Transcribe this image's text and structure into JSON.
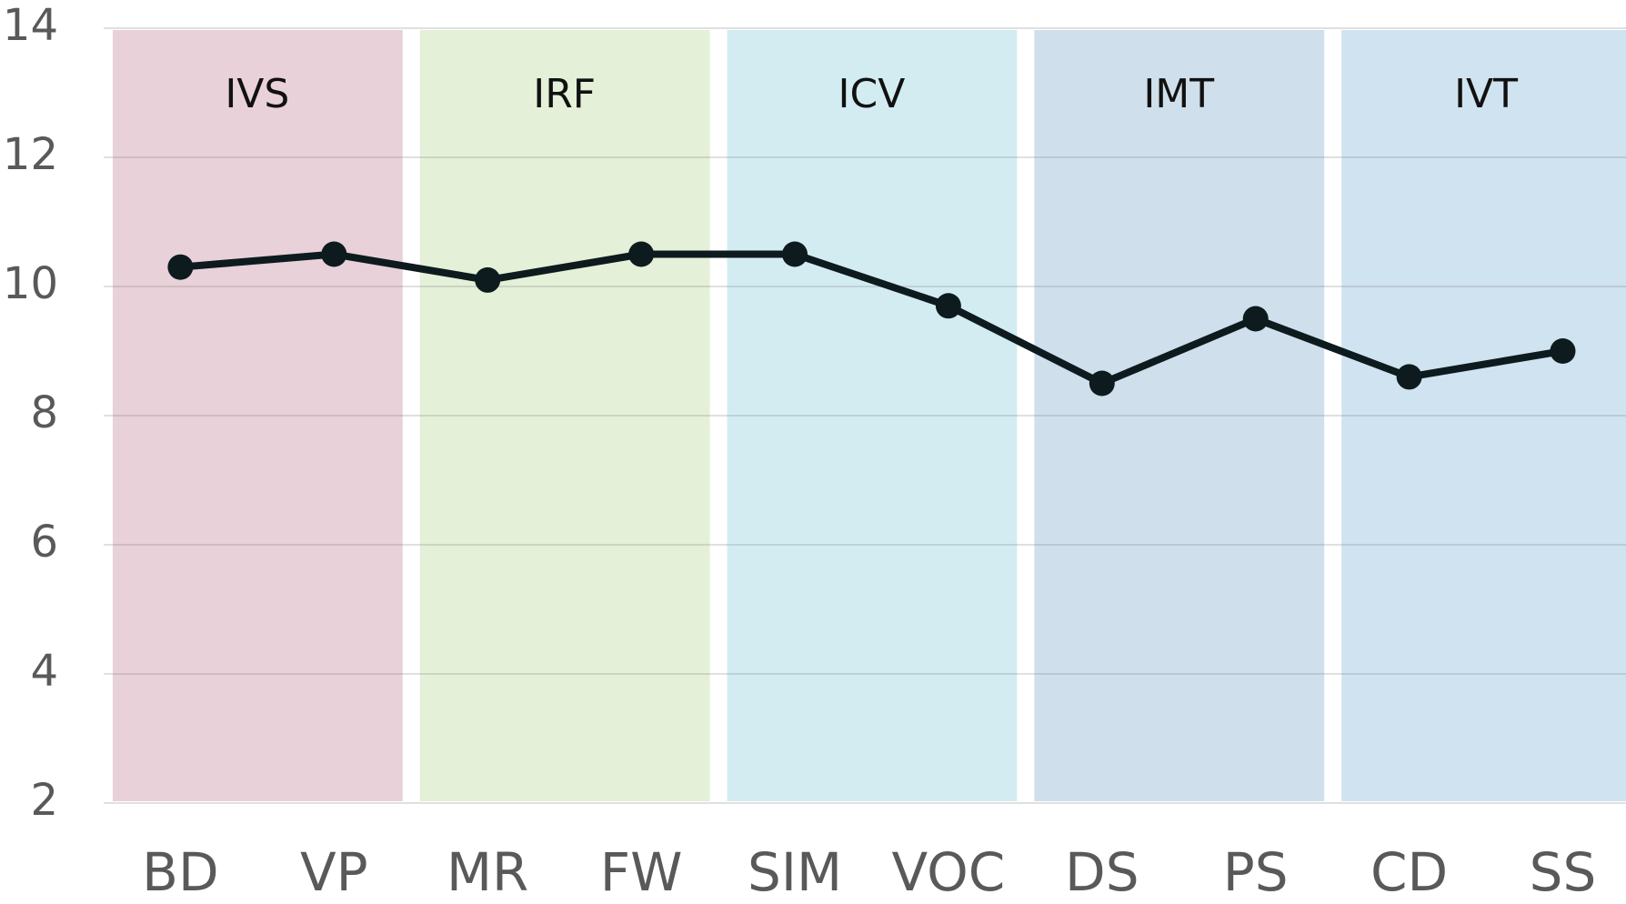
{
  "chart_data": {
    "type": "line",
    "categories": [
      "BD",
      "VP",
      "MR",
      "FW",
      "SIM",
      "VOC",
      "DS",
      "PS",
      "CD",
      "SS"
    ],
    "series": [
      {
        "color": "#0d1b1e",
        "values": [
          10.3,
          10.5,
          10.1,
          10.5,
          10.5,
          9.7,
          8.5,
          9.5,
          8.6,
          9.0
        ]
      }
    ],
    "ylim": [
      2,
      14
    ],
    "yticks": [
      2,
      4,
      6,
      8,
      10,
      12,
      14
    ],
    "grid": true,
    "bands": [
      {
        "label": "IVS",
        "color": "#e8d1d8"
      },
      {
        "label": "IRF",
        "color": "#e4f0d8"
      },
      {
        "label": "ICV",
        "color": "#d3ecf2"
      },
      {
        "label": "IMT",
        "color": "#cfe0ec"
      },
      {
        "label": "IVT",
        "color": "#d0e3f0"
      }
    ]
  }
}
